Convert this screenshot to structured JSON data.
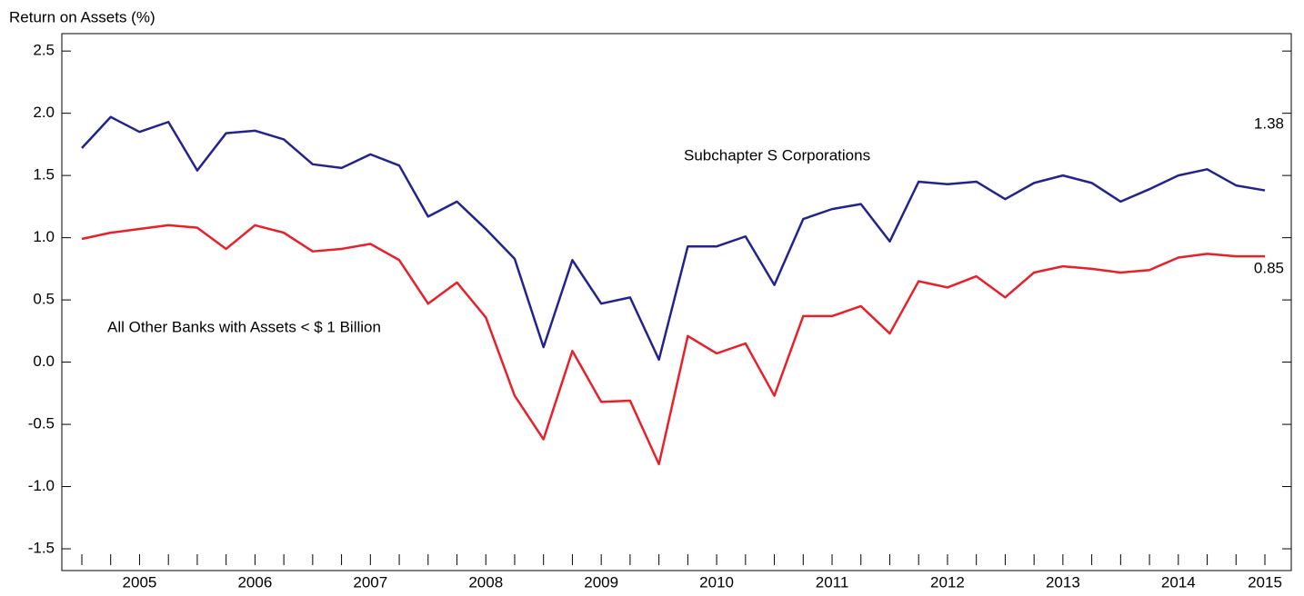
{
  "chart_data": {
    "type": "line",
    "y_label": "Return on Assets (%)",
    "categories": [
      null,
      null,
      "2005",
      null,
      null,
      null,
      "2006",
      null,
      null,
      null,
      "2007",
      null,
      null,
      null,
      "2008",
      null,
      null,
      null,
      "2009",
      null,
      null,
      null,
      "2010",
      null,
      null,
      null,
      "2011",
      null,
      null,
      null,
      "2012",
      null,
      null,
      null,
      "2013",
      null,
      null,
      null,
      "2014",
      null,
      null,
      "2015"
    ],
    "series": [
      {
        "name": "Subchapter S Corporations",
        "color": "#23238e",
        "values": [
          1.72,
          1.97,
          1.85,
          1.93,
          1.54,
          1.84,
          1.86,
          1.79,
          1.59,
          1.56,
          1.67,
          1.58,
          1.17,
          1.29,
          1.07,
          0.83,
          0.12,
          0.82,
          0.47,
          0.52,
          0.02,
          0.93,
          0.93,
          1.01,
          0.62,
          1.15,
          1.23,
          1.27,
          0.97,
          1.45,
          1.43,
          1.45,
          1.31,
          1.44,
          1.5,
          1.44,
          1.29,
          1.39,
          1.5,
          1.55,
          1.42,
          1.38
        ]
      },
      {
        "name": "All Other Banks with Assets < $ 1 Billion",
        "color": "#e8202a",
        "values": [
          0.99,
          1.04,
          1.07,
          1.1,
          1.08,
          0.91,
          1.1,
          1.04,
          0.89,
          0.91,
          0.95,
          0.82,
          0.47,
          0.64,
          0.36,
          -0.27,
          -0.62,
          0.09,
          -0.32,
          -0.31,
          -0.82,
          0.21,
          0.07,
          0.15,
          -0.27,
          0.37,
          0.37,
          0.45,
          0.23,
          0.65,
          0.6,
          0.69,
          0.52,
          0.72,
          0.77,
          0.75,
          0.72,
          0.74,
          0.84,
          0.87,
          0.85,
          0.85
        ]
      }
    ],
    "ylim": [
      -1.675,
      2.64
    ],
    "yticks": [
      2.5,
      {
        "value": 2,
        "label": "2.0"
      },
      1.5,
      {
        "value": 1,
        "label": "1.0"
      },
      0.5,
      {
        "value": 0,
        "label": "0.0"
      },
      -0.5,
      {
        "value": -1,
        "label": "-1.0"
      },
      -1.5
    ],
    "grid": false
  }
}
